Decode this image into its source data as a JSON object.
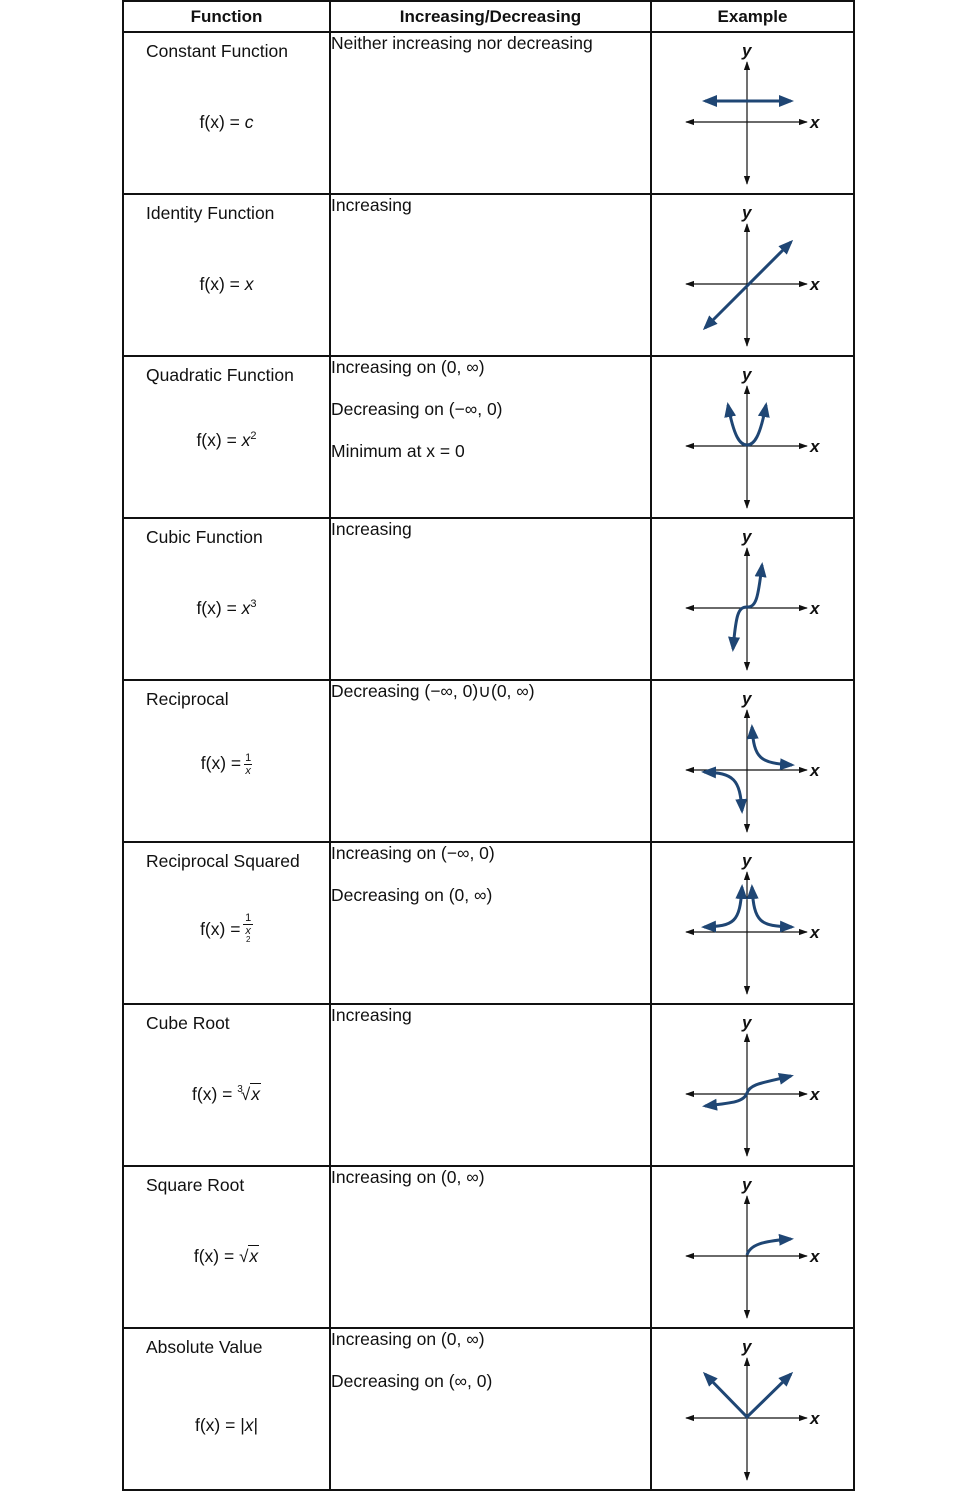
{
  "headers": [
    "Function",
    "Increasing/Decreasing",
    "Example"
  ],
  "axes": {
    "x_label": "x",
    "y_label": "y"
  },
  "colors": {
    "curve": "#1f4674",
    "axis": "#111111"
  },
  "rows": [
    {
      "name": "Constant Function",
      "formula_lhs": "f(x) =",
      "formula_rhs": "c",
      "behavior": [
        "Neither increasing nor decreasing"
      ]
    },
    {
      "name": "Identity Function",
      "formula_lhs": "f(x) =",
      "formula_rhs": "x",
      "behavior": [
        "Increasing"
      ]
    },
    {
      "name": "Quadratic Function",
      "formula_lhs": "f(x) =",
      "formula_base": "x",
      "formula_exp": "2",
      "behavior": [
        "Increasing on (0, ∞)",
        "Decreasing on (−∞, 0)",
        "Minimum at x = 0"
      ]
    },
    {
      "name": "Cubic Function",
      "formula_lhs": "f(x) =",
      "formula_base": "x",
      "formula_exp": "3",
      "behavior": [
        "Increasing"
      ]
    },
    {
      "name": "Reciprocal",
      "formula_lhs": "f(x) =",
      "frac_num": "1",
      "frac_den": "x",
      "behavior": [
        "Decreasing (−∞, 0)∪(0, ∞)"
      ]
    },
    {
      "name": "Reciprocal Squared",
      "formula_lhs": "f(x) =",
      "frac_num": "1",
      "frac_den_base": "x",
      "frac_den_exp": "2",
      "behavior": [
        "Increasing on (−∞, 0)",
        "Decreasing on (0, ∞)"
      ]
    },
    {
      "name": "Cube Root",
      "formula_lhs": "f(x) =",
      "root_index": "3",
      "radicand": "x",
      "behavior": [
        "Increasing"
      ]
    },
    {
      "name": "Square Root",
      "formula_lhs": "f(x) =",
      "radicand": "x",
      "behavior": [
        "Increasing on (0, ∞)"
      ]
    },
    {
      "name": "Absolute Value",
      "formula_lhs": "f(x) =",
      "abs_bar": "|",
      "radicand": "x",
      "behavior": [
        "Increasing on (0, ∞)",
        "Decreasing on (∞, 0)"
      ]
    }
  ]
}
